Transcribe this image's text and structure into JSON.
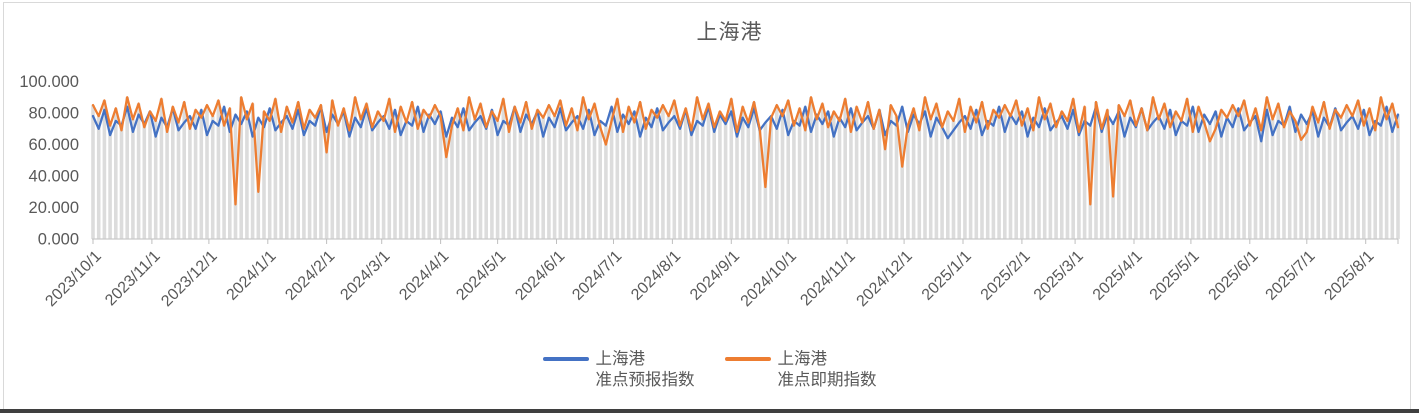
{
  "frame": {
    "border_color": "#d9d9d9",
    "bottom_edge_color": "#3f3f3f",
    "background": "#ffffff"
  },
  "chart_data": {
    "type": "line",
    "title": "上海港",
    "legend_position": "bottom",
    "grid": "vertical-drop-lines-per-point",
    "x_tick_labels": [
      "2023/10/1",
      "2023/11/1",
      "2023/12/1",
      "2024/1/1",
      "2024/2/1",
      "2024/3/1",
      "2024/4/1",
      "2024/5/1",
      "2024/6/1",
      "2024/7/1",
      "2024/8/1",
      "2024/9/1",
      "2024/10/1",
      "2024/11/1",
      "2024/12/1",
      "2025/1/1",
      "2025/2/1",
      "2025/3/1",
      "2025/4/1",
      "2025/5/1",
      "2025/6/1",
      "2025/7/1",
      "2025/8/1"
    ],
    "x_tick_day_offsets": [
      0,
      31,
      61,
      92,
      123,
      152,
      183,
      213,
      244,
      274,
      305,
      336,
      366,
      397,
      427,
      458,
      489,
      517,
      548,
      578,
      609,
      639,
      670
    ],
    "x_total_days": 687,
    "sample_interval_days": 3,
    "ylim": [
      0,
      100
    ],
    "y_tick_values": [
      0,
      20,
      40,
      60,
      80,
      100
    ],
    "y_tick_labels": [
      "0.000",
      "20.000",
      "40.000",
      "60.000",
      "80.000",
      "100.000"
    ],
    "styles": {
      "drop_line_color": "#dcdcdc",
      "axis_color": "#c9c9c9",
      "tick_color": "#bfbfbf",
      "label_color": "#595959",
      "title_color": "#595959",
      "legend_text_color": "#595959"
    },
    "series": [
      {
        "name": "上海港准点预报指数",
        "legend": [
          "上海港",
          "准点预报指数"
        ],
        "color": "#4472c4",
        "values": [
          78,
          70,
          82,
          66,
          75,
          72,
          84,
          68,
          79,
          73,
          81,
          65,
          77,
          71,
          83,
          69,
          74,
          78,
          70,
          82,
          66,
          75,
          72,
          84,
          68,
          79,
          73,
          81,
          65,
          77,
          71,
          83,
          69,
          74,
          78,
          70,
          82,
          66,
          75,
          72,
          84,
          68,
          79,
          73,
          81,
          65,
          77,
          71,
          83,
          69,
          74,
          78,
          70,
          82,
          66,
          75,
          72,
          84,
          68,
          79,
          73,
          81,
          65,
          77,
          71,
          83,
          69,
          74,
          78,
          70,
          82,
          66,
          75,
          72,
          84,
          68,
          79,
          73,
          81,
          65,
          77,
          71,
          83,
          69,
          74,
          78,
          70,
          82,
          66,
          75,
          72,
          84,
          68,
          79,
          73,
          81,
          65,
          77,
          71,
          83,
          69,
          74,
          78,
          70,
          82,
          66,
          75,
          72,
          84,
          68,
          79,
          73,
          81,
          65,
          77,
          71,
          83,
          69,
          74,
          78,
          70,
          82,
          66,
          75,
          72,
          84,
          68,
          79,
          73,
          81,
          65,
          77,
          71,
          83,
          69,
          74,
          78,
          70,
          82,
          66,
          75,
          72,
          84,
          68,
          79,
          73,
          81,
          65,
          77,
          71,
          64,
          69,
          74,
          78,
          70,
          82,
          66,
          75,
          72,
          84,
          68,
          79,
          73,
          81,
          65,
          77,
          71,
          83,
          69,
          74,
          78,
          70,
          82,
          66,
          75,
          72,
          84,
          68,
          79,
          73,
          81,
          65,
          77,
          71,
          83,
          69,
          74,
          78,
          70,
          82,
          66,
          75,
          72,
          84,
          68,
          79,
          73,
          81,
          65,
          77,
          71,
          83,
          69,
          74,
          78,
          62,
          82,
          66,
          75,
          72,
          84,
          68,
          79,
          73,
          81,
          65,
          77,
          71,
          83,
          69,
          74,
          78,
          70,
          82,
          66,
          75,
          72,
          84,
          68,
          79
        ]
      },
      {
        "name": "上海港准点即期指数",
        "legend": [
          "上海港",
          "准点即期指数"
        ],
        "color": "#ed7d31",
        "values": [
          85,
          78,
          88,
          72,
          83,
          69,
          90,
          76,
          86,
          71,
          81,
          75,
          89,
          68,
          84,
          74,
          87,
          70,
          82,
          77,
          85,
          78,
          88,
          72,
          83,
          22,
          90,
          76,
          86,
          30,
          81,
          75,
          89,
          68,
          84,
          74,
          87,
          70,
          82,
          77,
          85,
          55,
          88,
          72,
          83,
          69,
          90,
          76,
          86,
          71,
          81,
          75,
          89,
          68,
          84,
          74,
          87,
          70,
          82,
          77,
          85,
          78,
          52,
          72,
          83,
          69,
          90,
          76,
          86,
          71,
          81,
          75,
          89,
          68,
          84,
          74,
          87,
          70,
          82,
          77,
          85,
          78,
          88,
          72,
          83,
          69,
          90,
          76,
          86,
          71,
          60,
          75,
          89,
          68,
          84,
          74,
          87,
          70,
          82,
          77,
          85,
          78,
          88,
          72,
          83,
          69,
          90,
          76,
          86,
          71,
          81,
          75,
          89,
          68,
          84,
          74,
          87,
          70,
          33,
          77,
          85,
          78,
          88,
          72,
          83,
          69,
          90,
          76,
          86,
          71,
          81,
          75,
          89,
          68,
          84,
          74,
          87,
          70,
          82,
          57,
          85,
          78,
          46,
          72,
          83,
          69,
          90,
          76,
          86,
          71,
          81,
          75,
          89,
          68,
          84,
          74,
          87,
          70,
          82,
          77,
          85,
          78,
          88,
          72,
          83,
          69,
          90,
          76,
          86,
          71,
          81,
          75,
          89,
          68,
          84,
          22,
          87,
          70,
          82,
          27,
          85,
          78,
          88,
          72,
          83,
          69,
          90,
          76,
          86,
          71,
          81,
          75,
          89,
          68,
          84,
          74,
          62,
          70,
          82,
          77,
          85,
          78,
          88,
          72,
          83,
          69,
          90,
          76,
          86,
          71,
          81,
          75,
          63,
          68,
          84,
          74,
          87,
          70,
          82,
          77,
          85,
          78,
          88,
          72,
          83,
          69,
          90,
          76,
          86,
          71
        ]
      }
    ]
  }
}
